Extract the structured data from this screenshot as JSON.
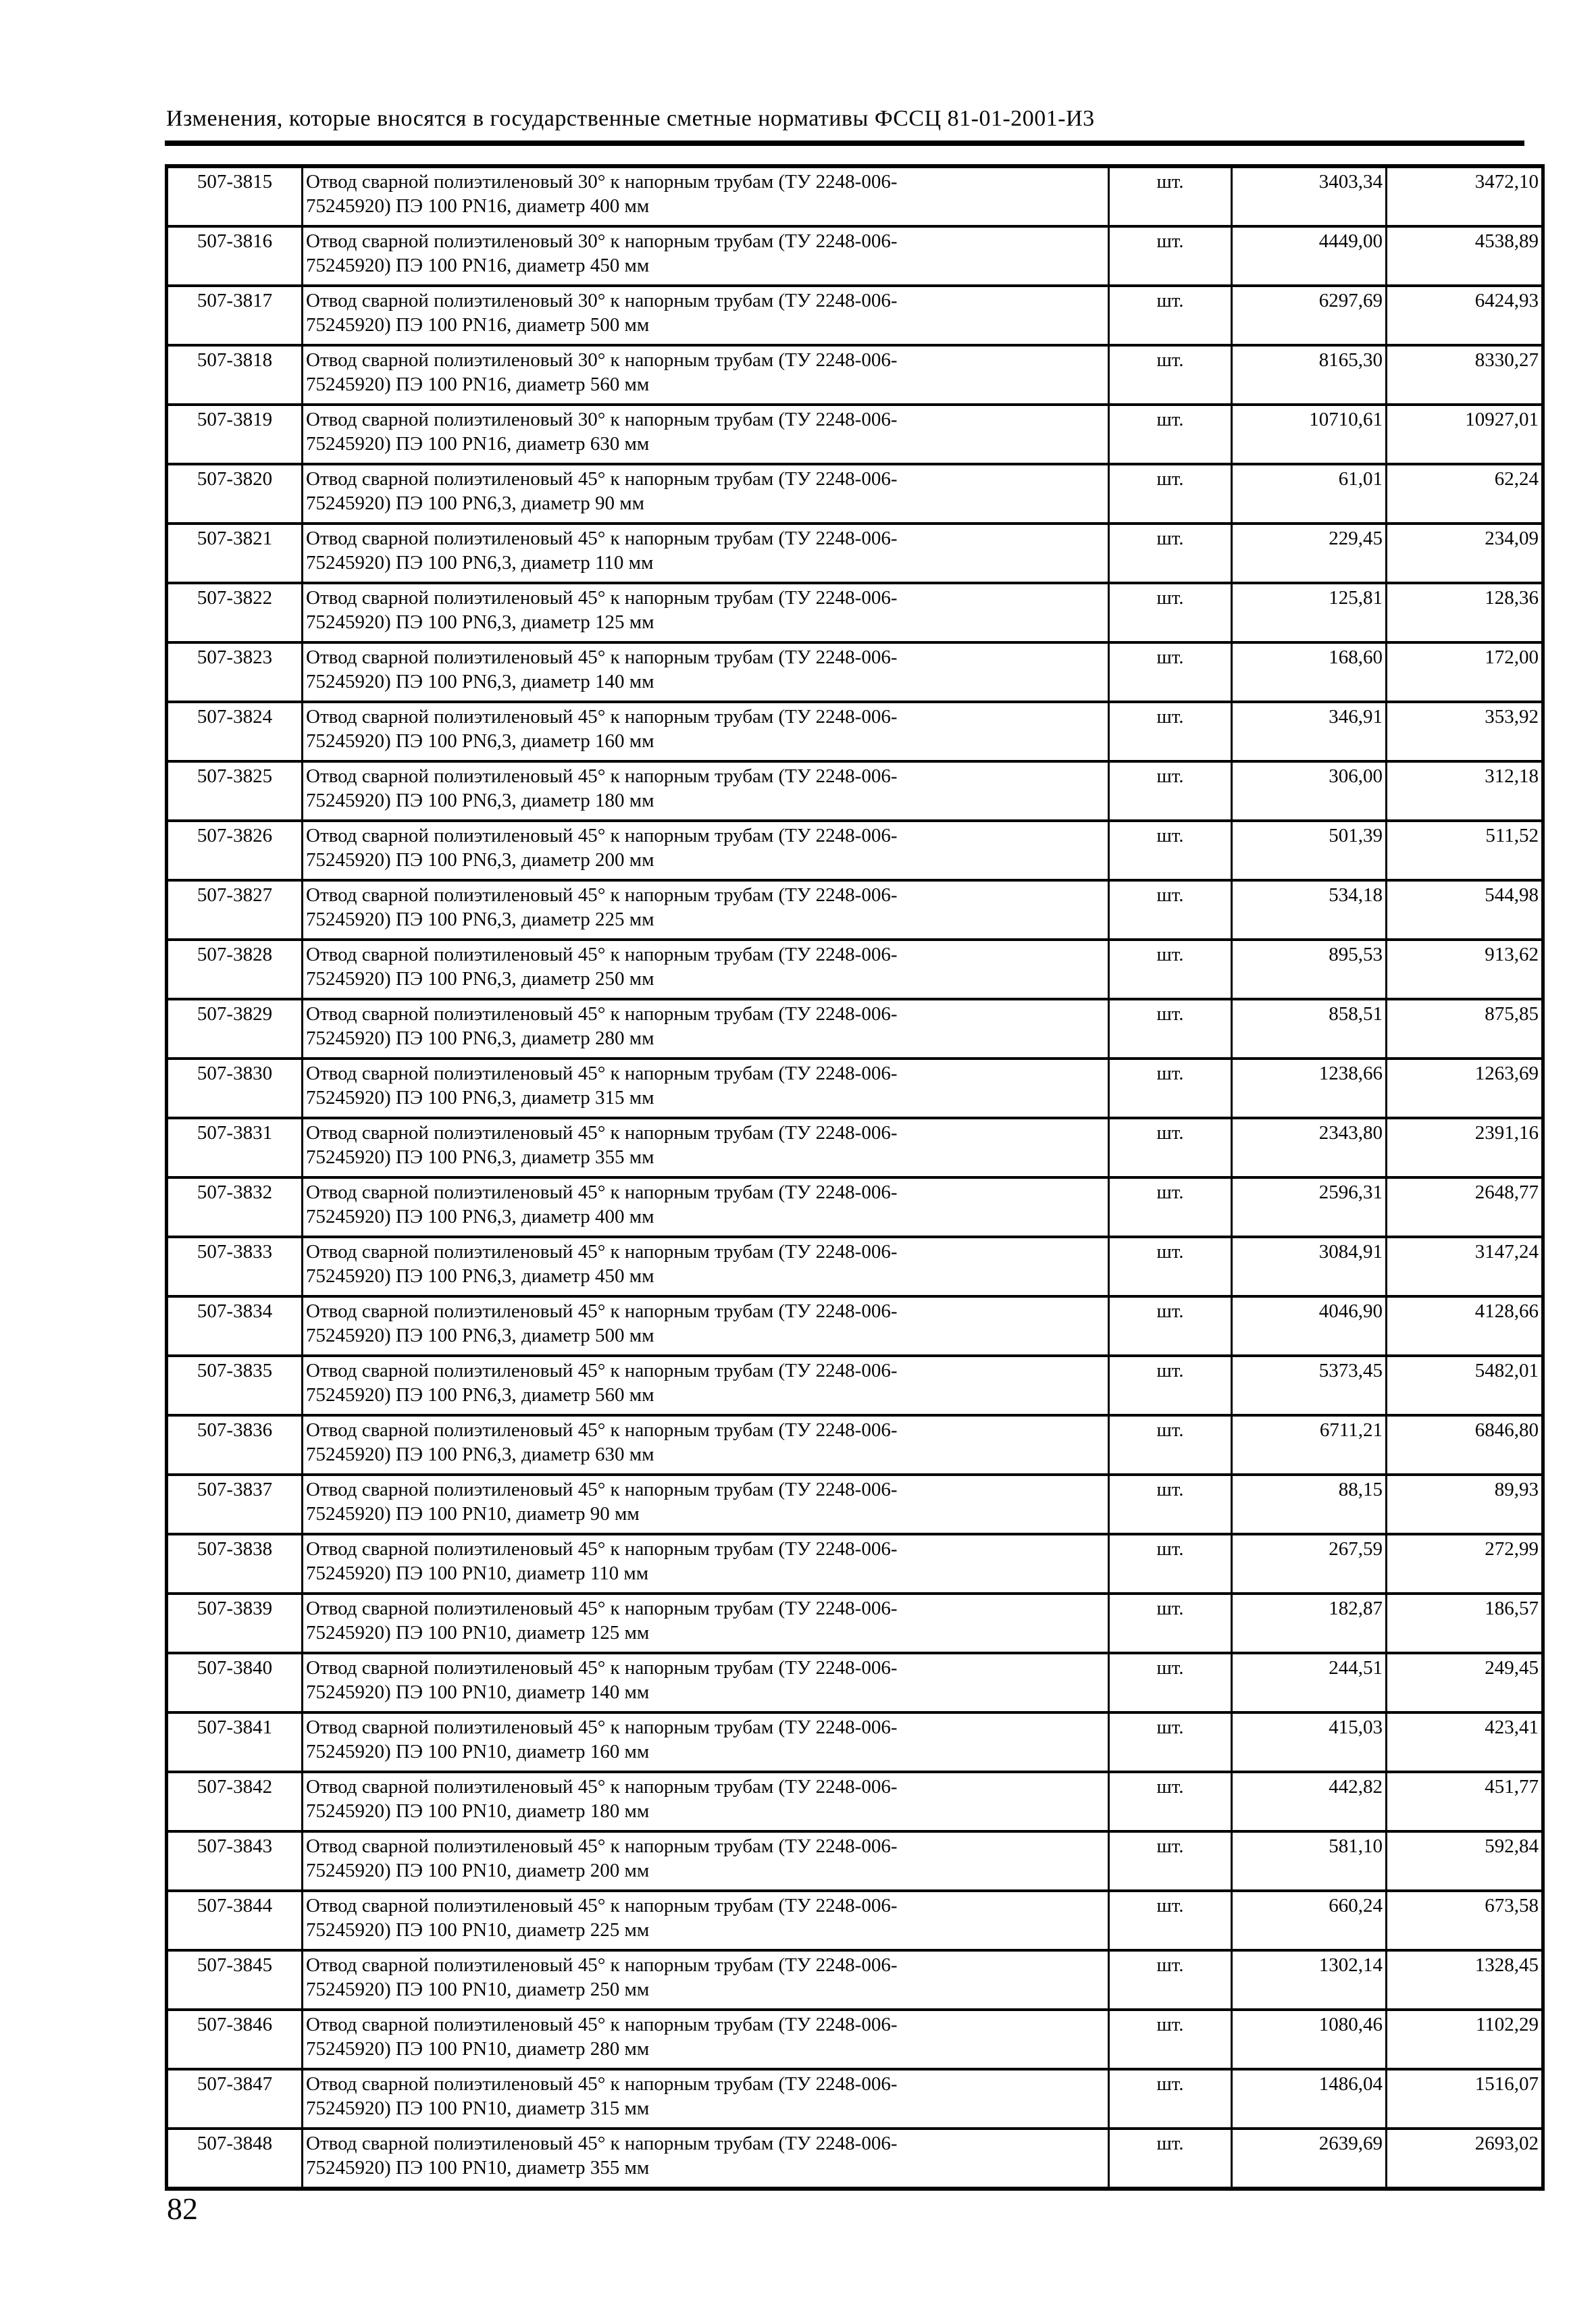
{
  "page": {
    "header": "Изменения, которые вносятся в государственные сметные нормативы ФССЦ 81-01-2001-И3",
    "page_number": "82"
  },
  "table": {
    "rows": [
      {
        "code": "507-3815",
        "desc": "Отвод сварной полиэтиленовый 30° к напорным трубам (ТУ 2248-006-\n75245920) ПЭ 100 PN16, диаметр 400 мм",
        "unit": "шт.",
        "price1": "3403,34",
        "price2": "3472,10"
      },
      {
        "code": "507-3816",
        "desc": "Отвод сварной полиэтиленовый 30° к напорным трубам (ТУ 2248-006-\n75245920) ПЭ 100 PN16, диаметр 450 мм",
        "unit": "шт.",
        "price1": "4449,00",
        "price2": "4538,89"
      },
      {
        "code": "507-3817",
        "desc": "Отвод сварной полиэтиленовый 30° к напорным трубам (ТУ 2248-006-\n75245920) ПЭ 100 PN16, диаметр 500 мм",
        "unit": "шт.",
        "price1": "6297,69",
        "price2": "6424,93"
      },
      {
        "code": "507-3818",
        "desc": "Отвод сварной полиэтиленовый 30° к напорным трубам (ТУ 2248-006-\n75245920) ПЭ 100 PN16, диаметр 560 мм",
        "unit": "шт.",
        "price1": "8165,30",
        "price2": "8330,27"
      },
      {
        "code": "507-3819",
        "desc": "Отвод сварной полиэтиленовый 30° к напорным трубам (ТУ 2248-006-\n75245920) ПЭ 100 PN16, диаметр 630 мм",
        "unit": "шт.",
        "price1": "10710,61",
        "price2": "10927,01"
      },
      {
        "code": "507-3820",
        "desc": "Отвод сварной полиэтиленовый 45° к напорным трубам (ТУ 2248-006-\n75245920) ПЭ 100 PN6,3, диаметр 90 мм",
        "unit": "шт.",
        "price1": "61,01",
        "price2": "62,24"
      },
      {
        "code": "507-3821",
        "desc": "Отвод сварной полиэтиленовый 45° к напорным трубам (ТУ 2248-006-\n75245920) ПЭ 100 PN6,3, диаметр 110 мм",
        "unit": "шт.",
        "price1": "229,45",
        "price2": "234,09"
      },
      {
        "code": "507-3822",
        "desc": "Отвод сварной полиэтиленовый 45° к напорным трубам (ТУ 2248-006-\n75245920) ПЭ 100 PN6,3, диаметр 125 мм",
        "unit": "шт.",
        "price1": "125,81",
        "price2": "128,36"
      },
      {
        "code": "507-3823",
        "desc": "Отвод сварной полиэтиленовый 45° к напорным трубам (ТУ 2248-006-\n75245920) ПЭ 100 PN6,3, диаметр 140 мм",
        "unit": "шт.",
        "price1": "168,60",
        "price2": "172,00"
      },
      {
        "code": "507-3824",
        "desc": "Отвод сварной полиэтиленовый 45° к напорным трубам (ТУ 2248-006-\n75245920) ПЭ 100 PN6,3, диаметр 160 мм",
        "unit": "шт.",
        "price1": "346,91",
        "price2": "353,92"
      },
      {
        "code": "507-3825",
        "desc": "Отвод сварной полиэтиленовый 45° к напорным трубам (ТУ 2248-006-\n75245920) ПЭ 100 PN6,3, диаметр 180 мм",
        "unit": "шт.",
        "price1": "306,00",
        "price2": "312,18"
      },
      {
        "code": "507-3826",
        "desc": "Отвод сварной полиэтиленовый 45° к напорным трубам (ТУ 2248-006-\n75245920) ПЭ 100 PN6,3, диаметр 200 мм",
        "unit": "шт.",
        "price1": "501,39",
        "price2": "511,52"
      },
      {
        "code": "507-3827",
        "desc": "Отвод сварной полиэтиленовый 45° к напорным трубам (ТУ 2248-006-\n75245920) ПЭ 100 PN6,3, диаметр 225 мм",
        "unit": "шт.",
        "price1": "534,18",
        "price2": "544,98"
      },
      {
        "code": "507-3828",
        "desc": "Отвод сварной полиэтиленовый 45° к напорным трубам (ТУ 2248-006-\n75245920) ПЭ 100 PN6,3, диаметр 250 мм",
        "unit": "шт.",
        "price1": "895,53",
        "price2": "913,62"
      },
      {
        "code": "507-3829",
        "desc": "Отвод сварной полиэтиленовый 45° к напорным трубам (ТУ 2248-006-\n75245920) ПЭ 100 PN6,3, диаметр 280 мм",
        "unit": "шт.",
        "price1": "858,51",
        "price2": "875,85"
      },
      {
        "code": "507-3830",
        "desc": "Отвод сварной полиэтиленовый 45° к напорным трубам (ТУ 2248-006-\n75245920) ПЭ 100 PN6,3, диаметр 315 мм",
        "unit": "шт.",
        "price1": "1238,66",
        "price2": "1263,69"
      },
      {
        "code": "507-3831",
        "desc": "Отвод сварной полиэтиленовый 45° к напорным трубам (ТУ 2248-006-\n75245920) ПЭ 100 PN6,3, диаметр 355 мм",
        "unit": "шт.",
        "price1": "2343,80",
        "price2": "2391,16"
      },
      {
        "code": "507-3832",
        "desc": "Отвод сварной полиэтиленовый 45° к напорным трубам (ТУ 2248-006-\n75245920) ПЭ 100 PN6,3, диаметр 400 мм",
        "unit": "шт.",
        "price1": "2596,31",
        "price2": "2648,77"
      },
      {
        "code": "507-3833",
        "desc": "Отвод сварной полиэтиленовый 45° к напорным трубам (ТУ 2248-006-\n75245920) ПЭ 100 PN6,3, диаметр 450 мм",
        "unit": "шт.",
        "price1": "3084,91",
        "price2": "3147,24"
      },
      {
        "code": "507-3834",
        "desc": "Отвод сварной полиэтиленовый 45° к напорным трубам (ТУ 2248-006-\n75245920) ПЭ 100 PN6,3, диаметр 500 мм",
        "unit": "шт.",
        "price1": "4046,90",
        "price2": "4128,66"
      },
      {
        "code": "507-3835",
        "desc": "Отвод сварной полиэтиленовый 45° к напорным трубам (ТУ 2248-006-\n75245920) ПЭ 100 PN6,3, диаметр 560 мм",
        "unit": "шт.",
        "price1": "5373,45",
        "price2": "5482,01"
      },
      {
        "code": "507-3836",
        "desc": "Отвод сварной полиэтиленовый 45° к напорным трубам (ТУ 2248-006-\n75245920) ПЭ 100 PN6,3, диаметр 630 мм",
        "unit": "шт.",
        "price1": "6711,21",
        "price2": "6846,80"
      },
      {
        "code": "507-3837",
        "desc": "Отвод сварной полиэтиленовый 45° к напорным трубам (ТУ 2248-006-\n75245920) ПЭ 100 PN10, диаметр 90 мм",
        "unit": "шт.",
        "price1": "88,15",
        "price2": "89,93"
      },
      {
        "code": "507-3838",
        "desc": "Отвод сварной полиэтиленовый 45° к напорным трубам (ТУ 2248-006-\n75245920) ПЭ 100 PN10, диаметр 110 мм",
        "unit": "шт.",
        "price1": "267,59",
        "price2": "272,99"
      },
      {
        "code": "507-3839",
        "desc": "Отвод сварной полиэтиленовый 45° к напорным трубам (ТУ 2248-006-\n75245920) ПЭ 100 PN10, диаметр 125 мм",
        "unit": "шт.",
        "price1": "182,87",
        "price2": "186,57"
      },
      {
        "code": "507-3840",
        "desc": "Отвод сварной полиэтиленовый 45° к напорным трубам (ТУ 2248-006-\n75245920) ПЭ 100 PN10, диаметр 140 мм",
        "unit": "шт.",
        "price1": "244,51",
        "price2": "249,45"
      },
      {
        "code": "507-3841",
        "desc": "Отвод сварной полиэтиленовый 45° к напорным трубам (ТУ 2248-006-\n75245920) ПЭ 100 PN10, диаметр 160 мм",
        "unit": "шт.",
        "price1": "415,03",
        "price2": "423,41"
      },
      {
        "code": "507-3842",
        "desc": "Отвод сварной полиэтиленовый 45° к напорным трубам (ТУ 2248-006-\n75245920) ПЭ 100 PN10, диаметр 180 мм",
        "unit": "шт.",
        "price1": "442,82",
        "price2": "451,77"
      },
      {
        "code": "507-3843",
        "desc": "Отвод сварной полиэтиленовый 45° к напорным трубам (ТУ 2248-006-\n75245920) ПЭ 100 PN10, диаметр 200 мм",
        "unit": "шт.",
        "price1": "581,10",
        "price2": "592,84"
      },
      {
        "code": "507-3844",
        "desc": "Отвод сварной полиэтиленовый 45° к напорным трубам (ТУ 2248-006-\n75245920) ПЭ 100 PN10, диаметр 225 мм",
        "unit": "шт.",
        "price1": "660,24",
        "price2": "673,58"
      },
      {
        "code": "507-3845",
        "desc": "Отвод сварной полиэтиленовый 45° к напорным трубам (ТУ 2248-006-\n75245920) ПЭ 100 PN10, диаметр 250 мм",
        "unit": "шт.",
        "price1": "1302,14",
        "price2": "1328,45"
      },
      {
        "code": "507-3846",
        "desc": "Отвод сварной полиэтиленовый 45° к напорным трубам (ТУ 2248-006-\n75245920) ПЭ 100 PN10, диаметр 280 мм",
        "unit": "шт.",
        "price1": "1080,46",
        "price2": "1102,29"
      },
      {
        "code": "507-3847",
        "desc": "Отвод сварной полиэтиленовый 45° к напорным трубам (ТУ 2248-006-\n75245920) ПЭ 100 PN10, диаметр 315 мм",
        "unit": "шт.",
        "price1": "1486,04",
        "price2": "1516,07"
      },
      {
        "code": "507-3848",
        "desc": "Отвод сварной полиэтиленовый 45° к напорным трубам (ТУ 2248-006-\n75245920) ПЭ 100 PN10, диаметр 355 мм",
        "unit": "шт.",
        "price1": "2639,69",
        "price2": "2693,02"
      }
    ]
  }
}
